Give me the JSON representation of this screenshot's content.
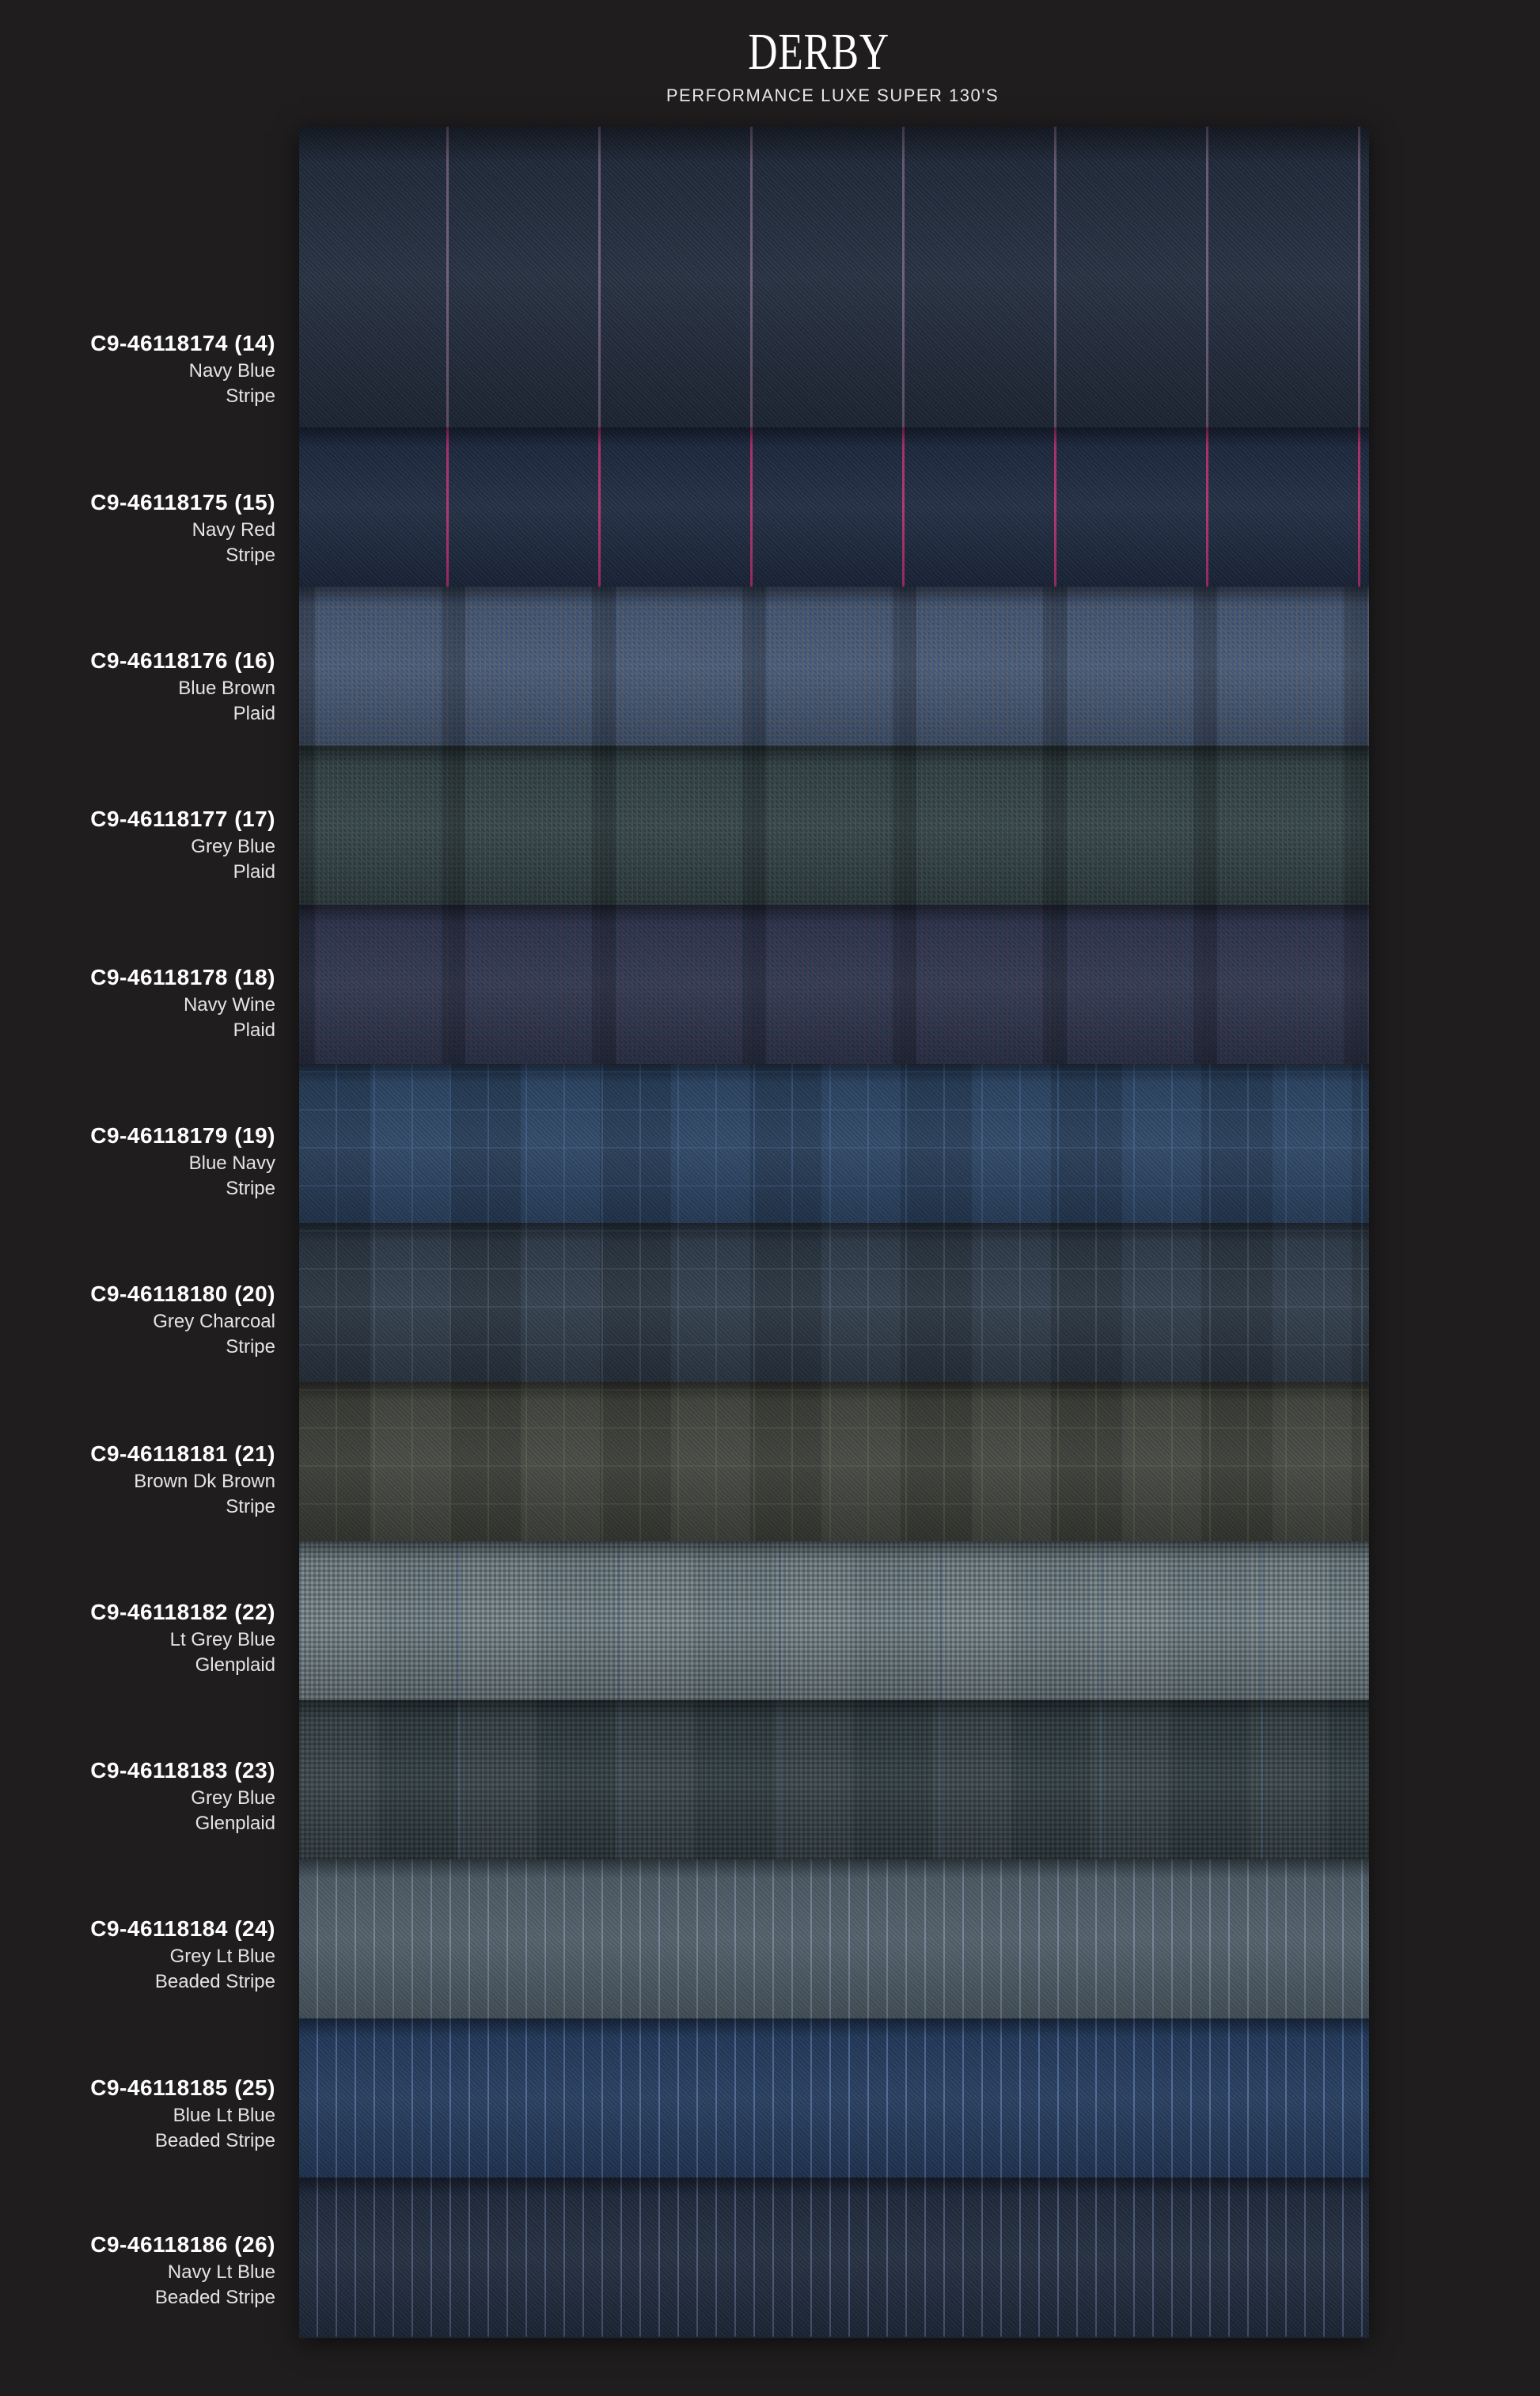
{
  "brand": "DERBY",
  "subtitle": "PERFORMANCE LUXE SUPER 130'S",
  "swatches": [
    {
      "code": "C9-46118174 (14)",
      "line1": "Navy Blue",
      "line2": "Stripe",
      "base": "#212b3c",
      "pattern": "stripe",
      "stripe": "#6d5d7a"
    },
    {
      "code": "C9-46118175 (15)",
      "line1": "Navy Red",
      "line2": "Stripe",
      "base": "#1d2940",
      "pattern": "stripe",
      "stripe": "#b0336f"
    },
    {
      "code": "C9-46118176 (16)",
      "line1": "Blue Brown",
      "line2": "Plaid",
      "base": "#3a5478",
      "pattern": "plaid",
      "stripe": "#8a6a55"
    },
    {
      "code": "C9-46118177 (17)",
      "line1": "Grey Blue",
      "line2": "Plaid",
      "base": "#2e3b3f",
      "pattern": "plaid",
      "stripe": "#4e6a6a"
    },
    {
      "code": "C9-46118178 (18)",
      "line1": "Navy Wine",
      "line2": "Plaid",
      "base": "#243550",
      "pattern": "plaid",
      "stripe": "#6a3440"
    },
    {
      "code": "C9-46118179 (19)",
      "line1": "Blue Navy",
      "line2": "Stripe",
      "base": "#2c4565",
      "pattern": "check",
      "stripe": "#4f74a3"
    },
    {
      "code": "C9-46118180 (20)",
      "line1": "Grey Charcoal",
      "line2": "Stripe",
      "base": "#2f3c4a",
      "pattern": "check",
      "stripe": "#5d6d7a"
    },
    {
      "code": "C9-46118181 (21)",
      "line1": "Brown Dk Brown",
      "line2": "Stripe",
      "base": "#434640",
      "pattern": "check",
      "stripe": "#6b6b55"
    },
    {
      "code": "C9-46118182 (22)",
      "line1": "Lt Grey Blue",
      "line2": "Glenplaid",
      "base": "#7d8d94",
      "pattern": "glen",
      "stripe": "#5f7aa0"
    },
    {
      "code": "C9-46118183 (23)",
      "line1": "Grey Blue",
      "line2": "Glenplaid",
      "base": "#3c4a4f",
      "pattern": "glen",
      "stripe": "#4f6a88"
    },
    {
      "code": "C9-46118184 (24)",
      "line1": "Grey Lt Blue",
      "line2": "Beaded Stripe",
      "base": "#4e5c67",
      "pattern": "fine",
      "stripe": "#8fa3bb"
    },
    {
      "code": "C9-46118185 (25)",
      "line1": "Blue Lt Blue",
      "line2": "Beaded Stripe",
      "base": "#233a5c",
      "pattern": "fine",
      "stripe": "#6f8fc0"
    },
    {
      "code": "C9-46118186 (26)",
      "line1": "Navy Lt Blue",
      "line2": "Beaded Stripe",
      "base": "#1f2a3d",
      "pattern": "fine",
      "stripe": "#6f82a6"
    }
  ]
}
